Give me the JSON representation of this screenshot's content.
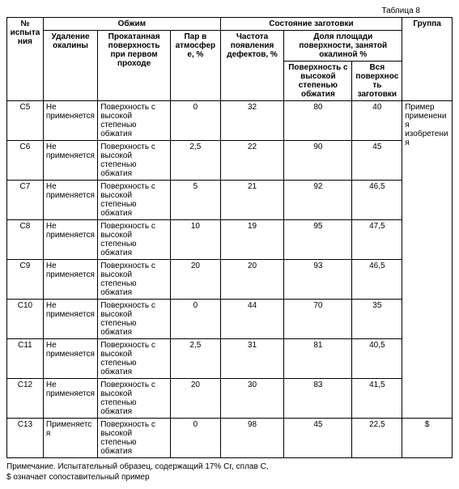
{
  "caption": "Таблица 8",
  "headers": {
    "test_no": "№ испытания",
    "obzhim": "Обжим",
    "sostoyanie": "Состояние заготовки",
    "gruppa": "Группа",
    "udalenie": "Удаление окалины",
    "prokat": "Прокатанная поверхность при первом проходе",
    "par": "Пар в атмосфере, %",
    "chastota": "Частота появления дефектов, %",
    "dolya": "Доля площади поверхности, занятой окалиной %",
    "pov_vys": "Поверхность с высокой степенью обжатия",
    "vsya": "Вся поверхность заготовки"
  },
  "rows": [
    {
      "id": "C5",
      "udal": "Не применяется",
      "prok": "Поверхность с высокой степенью обжатия",
      "par": "0",
      "chast": "32",
      "pv": "80",
      "vs": "40"
    },
    {
      "id": "C6",
      "udal": "Не применяется",
      "prok": "Поверхность с высокой степенью обжатия",
      "par": "2,5",
      "chast": "22",
      "pv": "90",
      "vs": "45"
    },
    {
      "id": "C7",
      "udal": "Не применяется",
      "prok": "Поверхность с высокой степенью обжатия",
      "par": "5",
      "chast": "21",
      "pv": "92",
      "vs": "46,5"
    },
    {
      "id": "C8",
      "udal": "Не применяется",
      "prok": "Поверхность с высокой степенью обжатия",
      "par": "10",
      "chast": "19",
      "pv": "95",
      "vs": "47,5"
    },
    {
      "id": "C9",
      "udal": "Не применяется",
      "prok": "Поверхность с высокой степенью обжатия",
      "par": "20",
      "chast": "20",
      "pv": "93",
      "vs": "46,5"
    },
    {
      "id": "C10",
      "udal": "Не применяется",
      "prok": "Поверхность с высокой степенью обжатия",
      "par": "0",
      "chast": "44",
      "pv": "70",
      "vs": "35"
    },
    {
      "id": "C11",
      "udal": "Не применяется",
      "prok": "Поверхность с высокой степенью обжатия",
      "par": "2,5",
      "chast": "31",
      "pv": "81",
      "vs": "40,5"
    },
    {
      "id": "C12",
      "udal": "Не применяется",
      "prok": "Поверхность с высокой степенью обжатия",
      "par": "20",
      "chast": "30",
      "pv": "83",
      "vs": "41,5"
    },
    {
      "id": "C13",
      "udal": "Применяется",
      "prok": "Поверхность с высокой степенью обжатия",
      "par": "0",
      "chast": "98",
      "pv": "45",
      "vs": "22,5"
    }
  ],
  "group_main": "Пример применения изобретения",
  "group_last": "$",
  "footnote1": "Примечание. Испытательный образец, содержащий 17% Cr, сплав C,",
  "footnote2": "$ означает сопоставительный пример"
}
